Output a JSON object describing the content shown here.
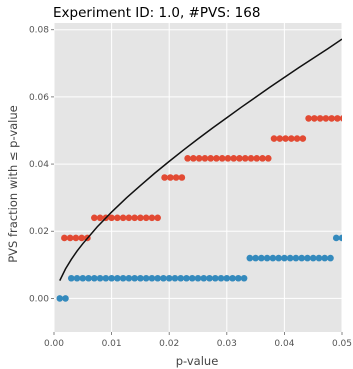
{
  "chart_data": {
    "type": "scatter",
    "title": "Experiment ID: 1.0, #PVS: 168",
    "xlabel": "p-value",
    "ylabel": "PVS fraction with ≤ p-value",
    "xlim": [
      0.0,
      0.05
    ],
    "ylim": [
      -0.01,
      0.082
    ],
    "x_ticks": [
      0.0,
      0.01,
      0.02,
      0.03,
      0.04,
      0.05
    ],
    "x_tick_labels": [
      "0.00",
      "0.01",
      "0.02",
      "0.03",
      "0.04",
      "0.05"
    ],
    "y_ticks": [
      0.0,
      0.02,
      0.04,
      0.06,
      0.08
    ],
    "y_tick_labels": [
      "0.00",
      "0.02",
      "0.04",
      "0.06",
      "0.08"
    ],
    "grid": true,
    "background": "#e5e5e5",
    "series": [
      {
        "color": "#348abd",
        "points": [
          [
            0.001,
            0.0
          ],
          [
            0.002,
            0.0
          ],
          [
            0.003,
            0.006
          ],
          [
            0.004,
            0.006
          ],
          [
            0.005,
            0.006
          ],
          [
            0.006,
            0.006
          ],
          [
            0.007,
            0.006
          ],
          [
            0.008,
            0.006
          ],
          [
            0.009,
            0.006
          ],
          [
            0.01,
            0.006
          ],
          [
            0.011,
            0.006
          ],
          [
            0.012,
            0.006
          ],
          [
            0.013,
            0.006
          ],
          [
            0.014,
            0.006
          ],
          [
            0.015,
            0.006
          ],
          [
            0.016,
            0.006
          ],
          [
            0.017,
            0.006
          ],
          [
            0.018,
            0.006
          ],
          [
            0.019,
            0.006
          ],
          [
            0.02,
            0.006
          ],
          [
            0.021,
            0.006
          ],
          [
            0.022,
            0.006
          ],
          [
            0.023,
            0.006
          ],
          [
            0.024,
            0.006
          ],
          [
            0.025,
            0.006
          ],
          [
            0.026,
            0.006
          ],
          [
            0.027,
            0.006
          ],
          [
            0.028,
            0.006
          ],
          [
            0.029,
            0.006
          ],
          [
            0.03,
            0.006
          ],
          [
            0.031,
            0.006
          ],
          [
            0.032,
            0.006
          ],
          [
            0.033,
            0.006
          ],
          [
            0.034,
            0.012
          ],
          [
            0.035,
            0.012
          ],
          [
            0.036,
            0.012
          ],
          [
            0.037,
            0.012
          ],
          [
            0.038,
            0.012
          ],
          [
            0.039,
            0.012
          ],
          [
            0.04,
            0.012
          ],
          [
            0.041,
            0.012
          ],
          [
            0.042,
            0.012
          ],
          [
            0.043,
            0.012
          ],
          [
            0.044,
            0.012
          ],
          [
            0.045,
            0.012
          ],
          [
            0.046,
            0.012
          ],
          [
            0.047,
            0.012
          ],
          [
            0.048,
            0.012
          ],
          [
            0.049,
            0.018
          ],
          [
            0.05,
            0.018
          ]
        ]
      },
      {
        "color": "#e24a33",
        "points": [
          [
            0.0018,
            0.018
          ],
          [
            0.0028,
            0.018
          ],
          [
            0.0038,
            0.018
          ],
          [
            0.0048,
            0.018
          ],
          [
            0.0058,
            0.018
          ],
          [
            0.007,
            0.024
          ],
          [
            0.008,
            0.024
          ],
          [
            0.009,
            0.024
          ],
          [
            0.01,
            0.024
          ],
          [
            0.011,
            0.024
          ],
          [
            0.012,
            0.024
          ],
          [
            0.013,
            0.024
          ],
          [
            0.014,
            0.024
          ],
          [
            0.015,
            0.024
          ],
          [
            0.016,
            0.024
          ],
          [
            0.017,
            0.024
          ],
          [
            0.018,
            0.024
          ],
          [
            0.0192,
            0.036
          ],
          [
            0.0202,
            0.036
          ],
          [
            0.0212,
            0.036
          ],
          [
            0.0222,
            0.036
          ],
          [
            0.0232,
            0.0417
          ],
          [
            0.0242,
            0.0417
          ],
          [
            0.0252,
            0.0417
          ],
          [
            0.0262,
            0.0417
          ],
          [
            0.0272,
            0.0417
          ],
          [
            0.0282,
            0.0417
          ],
          [
            0.0292,
            0.0417
          ],
          [
            0.0302,
            0.0417
          ],
          [
            0.0312,
            0.0417
          ],
          [
            0.0322,
            0.0417
          ],
          [
            0.0332,
            0.0417
          ],
          [
            0.0342,
            0.0417
          ],
          [
            0.0352,
            0.0417
          ],
          [
            0.0362,
            0.0417
          ],
          [
            0.0372,
            0.0417
          ],
          [
            0.0382,
            0.0476
          ],
          [
            0.0392,
            0.0476
          ],
          [
            0.0402,
            0.0476
          ],
          [
            0.0412,
            0.0476
          ],
          [
            0.0422,
            0.0476
          ],
          [
            0.0432,
            0.0476
          ],
          [
            0.0442,
            0.0536
          ],
          [
            0.0452,
            0.0536
          ],
          [
            0.0462,
            0.0536
          ],
          [
            0.0472,
            0.0536
          ],
          [
            0.0482,
            0.0536
          ],
          [
            0.0492,
            0.0536
          ],
          [
            0.0502,
            0.0536
          ]
        ]
      },
      {
        "type": "line",
        "color": "#111111",
        "points": [
          [
            0.001,
            0.0053
          ],
          [
            0.002,
            0.0088
          ],
          [
            0.003,
            0.0116
          ],
          [
            0.004,
            0.0141
          ],
          [
            0.005,
            0.0163
          ],
          [
            0.0075,
            0.0213
          ],
          [
            0.01,
            0.0257
          ],
          [
            0.0125,
            0.0298
          ],
          [
            0.015,
            0.0336
          ],
          [
            0.0175,
            0.0373
          ],
          [
            0.02,
            0.0408
          ],
          [
            0.0225,
            0.0442
          ],
          [
            0.025,
            0.0475
          ],
          [
            0.0275,
            0.0507
          ],
          [
            0.03,
            0.0538
          ],
          [
            0.0325,
            0.0569
          ],
          [
            0.035,
            0.0599
          ],
          [
            0.0375,
            0.0629
          ],
          [
            0.04,
            0.0658
          ],
          [
            0.0425,
            0.0687
          ],
          [
            0.045,
            0.0715
          ],
          [
            0.0475,
            0.0743
          ],
          [
            0.05,
            0.0772
          ]
        ]
      }
    ]
  }
}
